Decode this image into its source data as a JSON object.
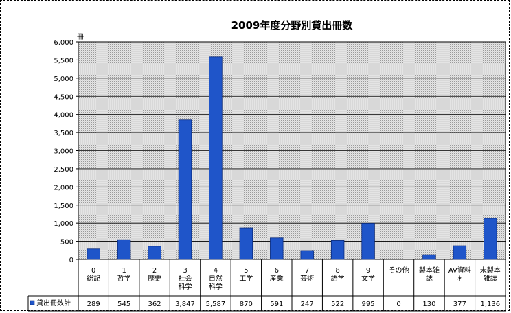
{
  "chart_data": {
    "type": "bar",
    "title": "2009年度分野別貸出冊数",
    "ylabel": "冊",
    "xlabel": "",
    "ylim": [
      0,
      6000
    ],
    "y_ticks": [
      "0",
      "500",
      "1,000",
      "1,500",
      "2,000",
      "2,500",
      "3,000",
      "3,500",
      "4,000",
      "4,500",
      "5,000",
      "5,500",
      "6,000"
    ],
    "grid": true,
    "legend_position": "bottom-left, inside data table",
    "categories": [
      [
        "0",
        "総記"
      ],
      [
        "1",
        "哲学"
      ],
      [
        "2",
        "歴史"
      ],
      [
        "3",
        "社会",
        "科学"
      ],
      [
        "4",
        "自然",
        "科学"
      ],
      [
        "5",
        "工学"
      ],
      [
        "6",
        "産業"
      ],
      [
        "7",
        "芸術"
      ],
      [
        "8",
        "語学"
      ],
      [
        "9",
        "文学"
      ],
      [
        "その他"
      ],
      [
        "製本雑",
        "誌"
      ],
      [
        "AV資料",
        "＊"
      ],
      [
        "未製本",
        "雑誌"
      ]
    ],
    "series": [
      {
        "name": "貸出冊数計",
        "color": "#1F55C9",
        "values": [
          289,
          545,
          362,
          3847,
          5587,
          870,
          591,
          247,
          522,
          995,
          0,
          130,
          377,
          1136
        ],
        "value_labels": [
          "289",
          "545",
          "362",
          "3,847",
          "5,587",
          "870",
          "591",
          "247",
          "522",
          "995",
          "0",
          "130",
          "377",
          "1,136"
        ]
      }
    ]
  }
}
